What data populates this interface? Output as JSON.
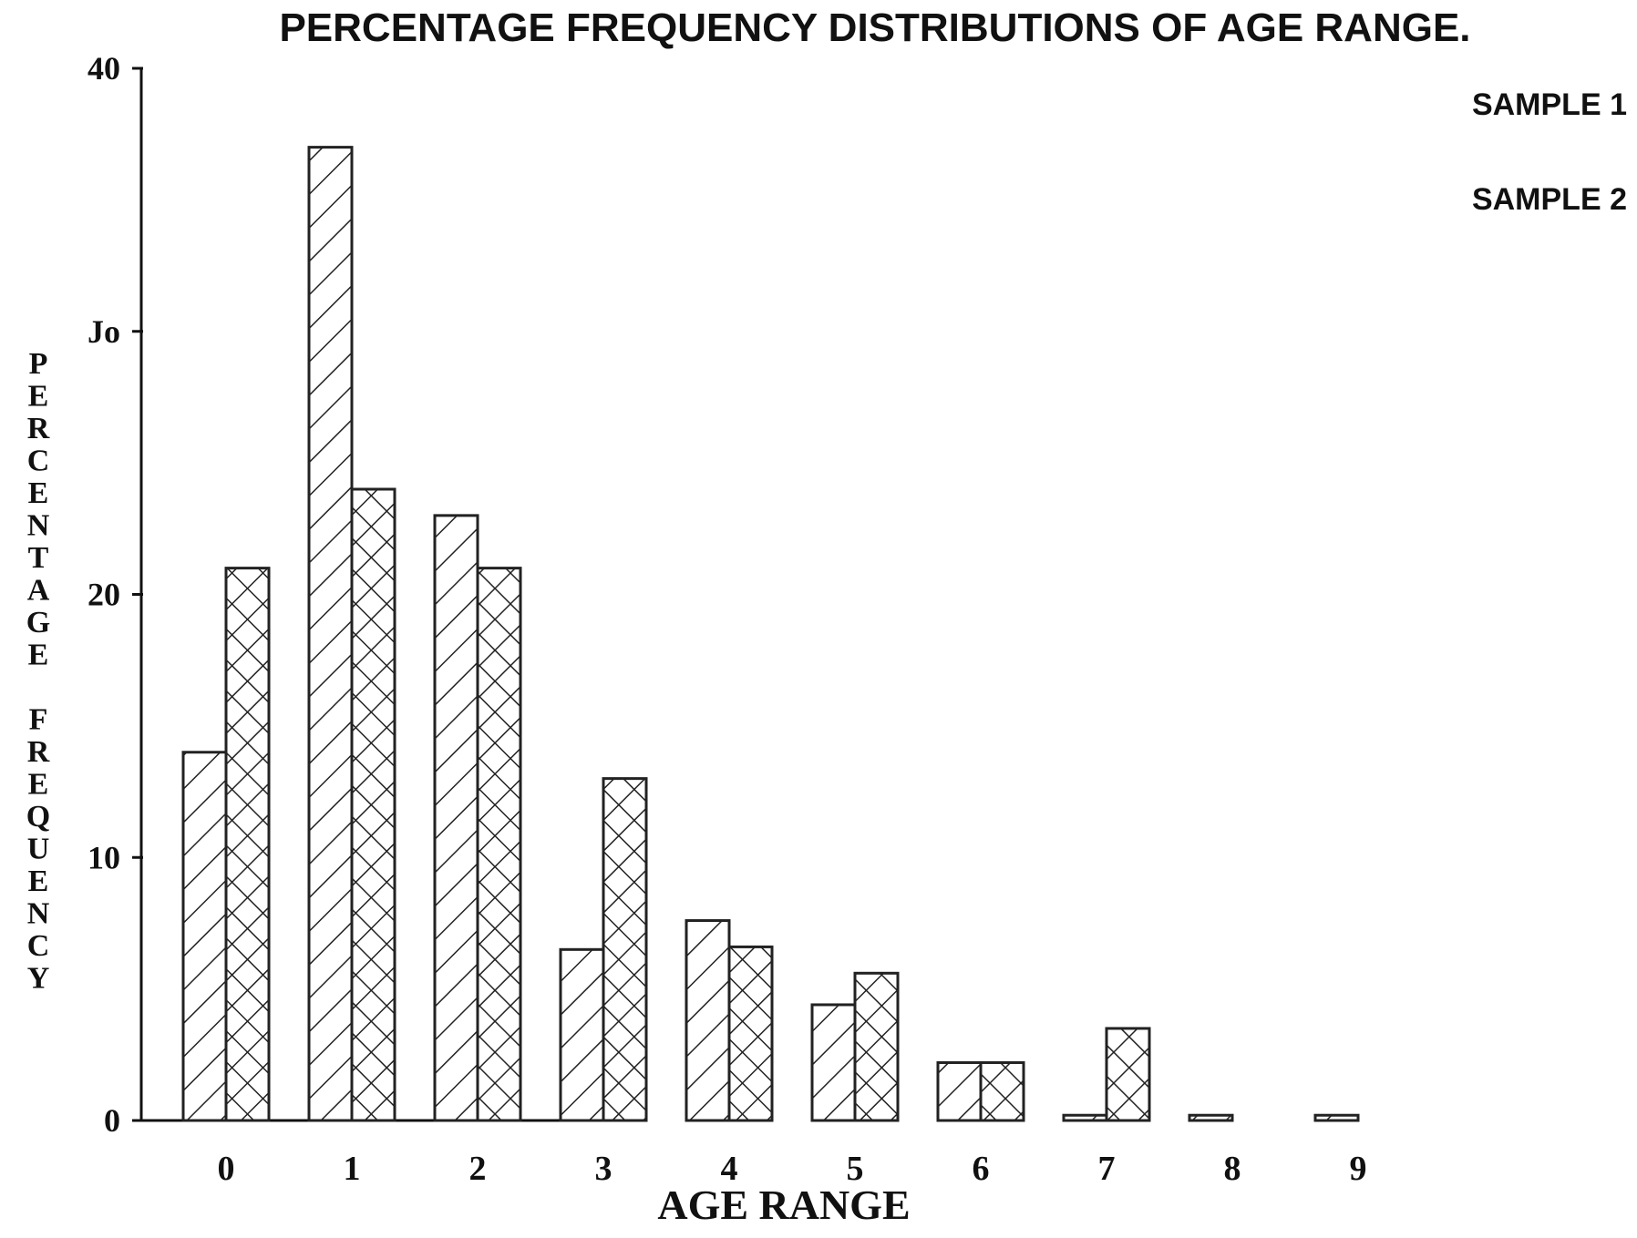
{
  "chart_data": {
    "type": "bar",
    "title": "PERCENTAGE FREQUENCY DISTRIBUTIONS OF AGE RANGE.",
    "xlabel": "AGE RANGE",
    "ylabel": "PERCENTAGE FREQUENCY",
    "categories": [
      "0",
      "1",
      "2",
      "3",
      "4",
      "5",
      "6",
      "7",
      "8",
      "9"
    ],
    "series": [
      {
        "name": "SAMPLE 1",
        "values": [
          14,
          37,
          23,
          6.5,
          7.6,
          4.4,
          2.2,
          0.2,
          0.2,
          0.2
        ]
      },
      {
        "name": "SAMPLE 2",
        "values": [
          21,
          24,
          21,
          13,
          6.6,
          5.6,
          2.2,
          3.5,
          0,
          0
        ]
      }
    ],
    "ylim": [
      0,
      40
    ],
    "yticks": [
      "0",
      "10",
      "20",
      "Jo",
      "40"
    ],
    "grid": false,
    "legend_position": "top-right"
  }
}
